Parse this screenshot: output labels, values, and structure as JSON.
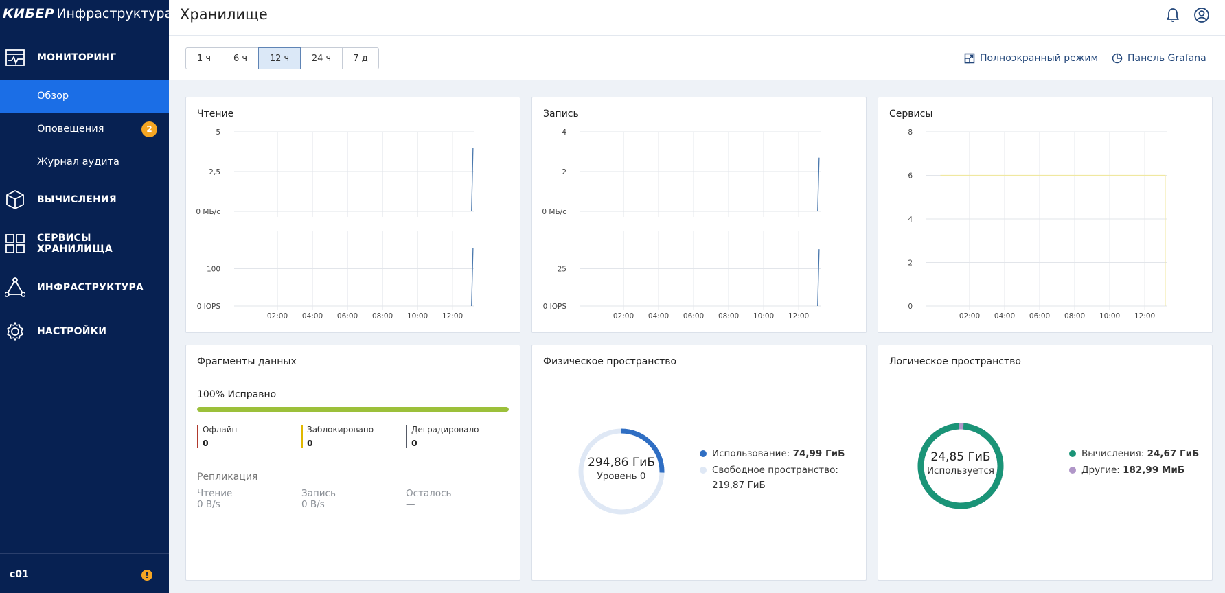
{
  "sidebar": {
    "brand_bold": "КИБЕР",
    "brand_rest": "Инфраструктура",
    "sections": {
      "monitoring": "МОНИТОРИНГ",
      "compute": "ВЫЧИСЛЕНИЯ",
      "storage": "СЕРВИСЫ ХРАНИЛИЩА",
      "infra": "ИНФРАСТРУКТУРА",
      "settings": "НАСТРОЙКИ"
    },
    "sub_items": [
      {
        "label": "Обзор",
        "active": true
      },
      {
        "label": "Оповещения",
        "badge": "2"
      },
      {
        "label": "Журнал аудита"
      }
    ],
    "cluster": "c01",
    "warn": "!"
  },
  "header": {
    "title": "Хранилище",
    "icons": [
      "bell-icon",
      "user-icon"
    ]
  },
  "toolbar": {
    "ranges": [
      "1 ч",
      "6 ч",
      "12 ч",
      "24 ч",
      "7 д"
    ],
    "active_range": "12 ч",
    "fullscreen_label": "Полноэкранный режим",
    "grafana_label": "Панель Grafana"
  },
  "colors": {
    "accent": "#1b6ee6",
    "sidebar_bg": "#072152",
    "healthy": "#9cc03a",
    "usage_blue": "#2f6ec3",
    "free_light": "#dfe8f5",
    "compute_green": "#1a9477",
    "other_purple": "#b096c8"
  },
  "chart_data": [
    {
      "id": "read",
      "title": "Чтение",
      "type": "line",
      "x_ticks": [
        "02:00",
        "04:00",
        "06:00",
        "08:00",
        "10:00",
        "12:00"
      ],
      "panels": [
        {
          "y_ticks": [
            "5",
            "2,5",
            "0 МБ/с"
          ],
          "ylim": [
            0,
            5
          ],
          "series": [
            {
              "x": [
                "13:05",
                "13:10"
              ],
              "values": [
                0,
                4
              ]
            }
          ]
        },
        {
          "y_ticks": [
            "100",
            "0 IOPS"
          ],
          "ylim": [
            0,
            200
          ],
          "series": [
            {
              "x": [
                "13:05",
                "13:10"
              ],
              "values": [
                0,
                155
              ]
            }
          ]
        }
      ]
    },
    {
      "id": "write",
      "title": "Запись",
      "type": "line",
      "x_ticks": [
        "02:00",
        "04:00",
        "06:00",
        "08:00",
        "10:00",
        "12:00"
      ],
      "panels": [
        {
          "y_ticks": [
            "4",
            "2",
            "0 МБ/с"
          ],
          "ylim": [
            0,
            4
          ],
          "series": [
            {
              "x": [
                "13:05",
                "13:10"
              ],
              "values": [
                0,
                2.7
              ]
            }
          ]
        },
        {
          "y_ticks": [
            "25",
            "0 IOPS"
          ],
          "ylim": [
            0,
            50
          ],
          "series": [
            {
              "x": [
                "13:05",
                "13:10"
              ],
              "values": [
                0,
                38
              ]
            }
          ]
        }
      ]
    },
    {
      "id": "services",
      "title": "Сервисы",
      "type": "line",
      "x_ticks": [
        "02:00",
        "04:00",
        "06:00",
        "08:00",
        "10:00",
        "12:00"
      ],
      "y_ticks": [
        "8",
        "6",
        "4",
        "2",
        "0"
      ],
      "ylim": [
        0,
        8
      ],
      "series": [
        {
          "x": [
            "00:20",
            "13:10"
          ],
          "values": [
            6,
            6
          ]
        }
      ]
    }
  ],
  "fragments": {
    "title": "Фрагменты данных",
    "percent": "100%",
    "status": "Исправно",
    "fill_fraction": 1.0,
    "stats": [
      {
        "label": "Офлайн",
        "value": "0",
        "color": "#b03a2e"
      },
      {
        "label": "Заблокировано",
        "value": "0",
        "color": "#e0b800"
      },
      {
        "label": "Деградировало",
        "value": "0",
        "color": "#555a66"
      }
    ],
    "replication_title": "Репликация",
    "replication": [
      {
        "label": "Чтение",
        "value": "0 B/s"
      },
      {
        "label": "Запись",
        "value": "0 B/s"
      },
      {
        "label": "Осталось",
        "value": "—"
      }
    ]
  },
  "physical": {
    "title": "Физическое пространство",
    "total": "294,86 ГиБ",
    "sub": "Уровень 0",
    "used_fraction": 0.254,
    "legend_used_label": "Использование:",
    "legend_used_value": "74,99 ГиБ",
    "legend_free_label": "Свободное пространство:",
    "legend_free_value": "219,87 ГиБ"
  },
  "logical": {
    "title": "Логическое пространство",
    "total": "24,85 ГиБ",
    "sub": "Используется",
    "compute_fraction": 0.9928,
    "legend_compute_label": "Вычисления:",
    "legend_compute_value": "24,67 ГиБ",
    "legend_other_label": "Другие:",
    "legend_other_value": "182,99 МиБ"
  }
}
